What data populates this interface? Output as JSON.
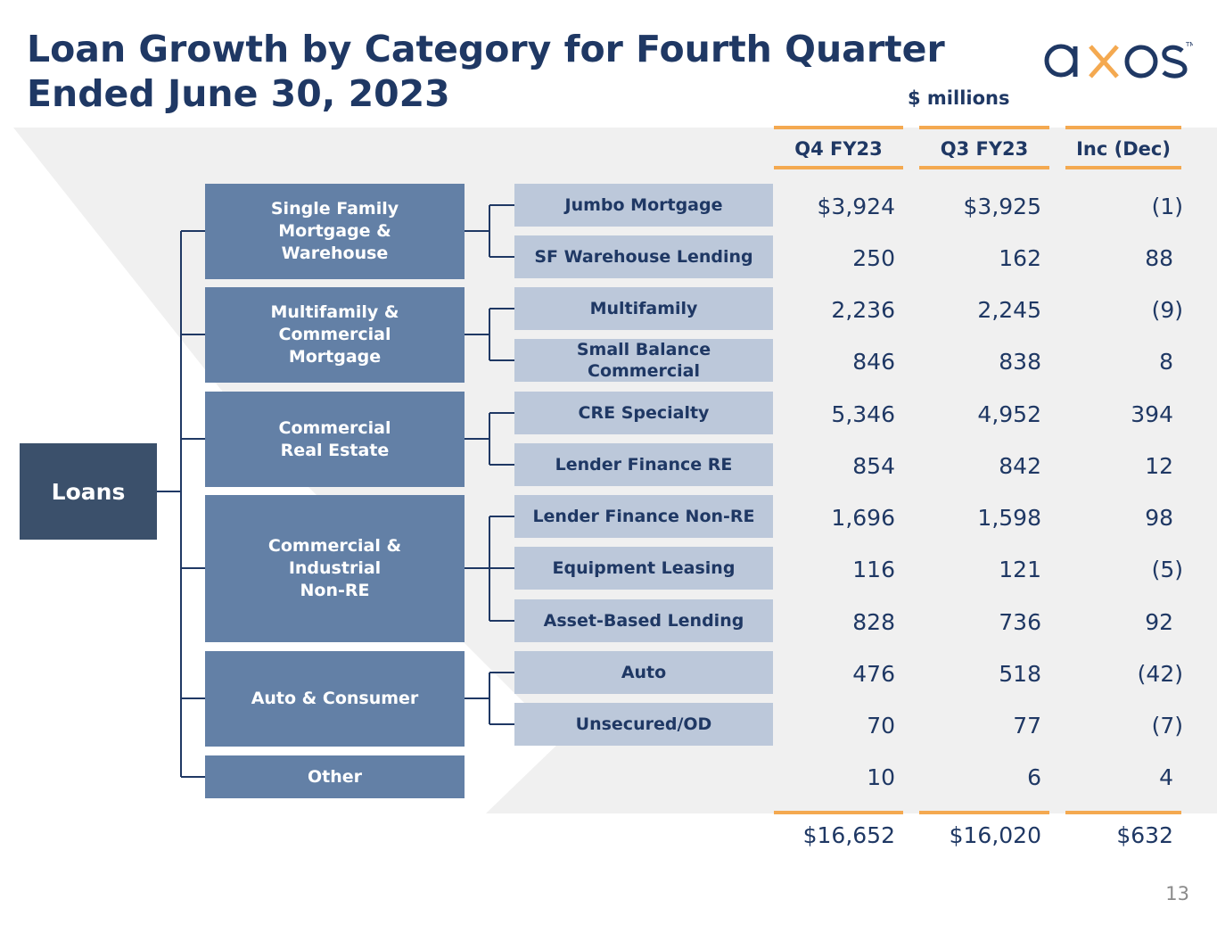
{
  "title": "Loan Growth by Category for Fourth Quarter\nEnded June 30, 2023",
  "logo": {
    "text": "axos",
    "brand_color": "#1f3864",
    "accent_color": "#f4a950"
  },
  "units_label": "$ millions",
  "columns": [
    "Q4 FY23",
    "Q3 FY23",
    "Inc (Dec)"
  ],
  "root_label": "Loans",
  "categories": [
    {
      "label": "Single Family\nMortgage &\nWarehouse"
    },
    {
      "label": "Multifamily &\nCommercial\nMortgage"
    },
    {
      "label": "Commercial\nReal Estate"
    },
    {
      "label": "Commercial &\nIndustrial\nNon-RE"
    },
    {
      "label": "Auto & Consumer"
    },
    {
      "label": "Other"
    }
  ],
  "rows": [
    {
      "label": "Jumbo Mortgage",
      "q4": "$3,924",
      "q3": "$3,925",
      "inc": "(1)"
    },
    {
      "label": "SF Warehouse Lending",
      "q4": "250",
      "q3": "162",
      "inc": "88"
    },
    {
      "label": "Multifamily",
      "q4": "2,236",
      "q3": "2,245",
      "inc": "(9)"
    },
    {
      "label": "Small Balance\nCommercial",
      "q4": "846",
      "q3": "838",
      "inc": "8"
    },
    {
      "label": "CRE Specialty",
      "q4": "5,346",
      "q3": "4,952",
      "inc": "394"
    },
    {
      "label": "Lender Finance RE",
      "q4": "854",
      "q3": "842",
      "inc": "12"
    },
    {
      "label": "Lender Finance Non-RE",
      "q4": "1,696",
      "q3": "1,598",
      "inc": "98"
    },
    {
      "label": "Equipment Leasing",
      "q4": "116",
      "q3": "121",
      "inc": "(5)"
    },
    {
      "label": "Asset-Based Lending",
      "q4": "828",
      "q3": "736",
      "inc": "92"
    },
    {
      "label": "Auto",
      "q4": "476",
      "q3": "518",
      "inc": "(42)"
    },
    {
      "label": "Unsecured/OD",
      "q4": "70",
      "q3": "77",
      "inc": "(7)"
    },
    {
      "label": "",
      "q4": "10",
      "q3": "6",
      "inc": "4"
    }
  ],
  "totals": {
    "q4": "$16,652",
    "q3": "$16,020",
    "inc": "$632"
  },
  "page_number": "13"
}
